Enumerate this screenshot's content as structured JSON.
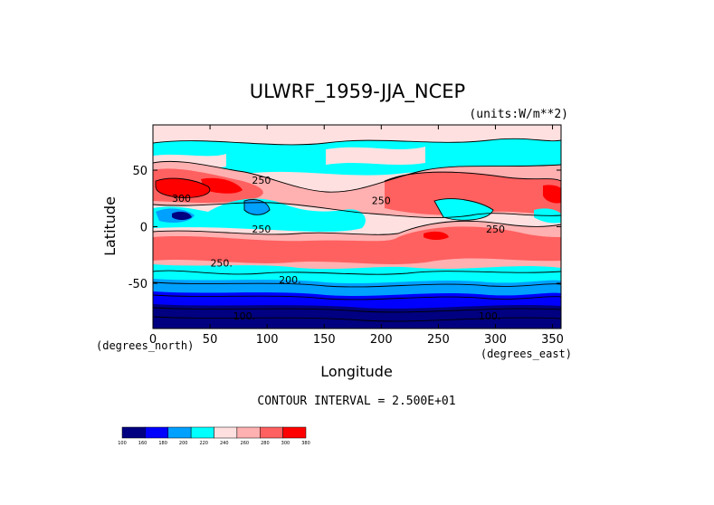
{
  "chart_data": {
    "type": "heatmap",
    "title": "ULWRF_1959-JJA_NCEP",
    "units_label": "(units:W/m**2)",
    "xlabel": "Longitude",
    "ylabel": "Latitude",
    "x_unit_label": "(degrees_east)",
    "y_unit_label": "(degrees_north)",
    "x_ticks": [
      0,
      50,
      100,
      150,
      200,
      250,
      300,
      350
    ],
    "y_ticks": [
      50,
      0,
      -50
    ],
    "xlim": [
      0,
      357.5
    ],
    "ylim": [
      -90,
      90
    ],
    "contour_interval_text": "CONTOUR INTERVAL = 2.500E+01",
    "contour_labels": [
      {
        "text": "300",
        "lon": 25,
        "lat": 22
      },
      {
        "text": "250",
        "lon": 95,
        "lat": 38
      },
      {
        "text": "250",
        "lon": 200,
        "lat": 20
      },
      {
        "text": "250",
        "lon": 95,
        "lat": -5
      },
      {
        "text": "250",
        "lon": 300,
        "lat": -5
      },
      {
        "text": "250.",
        "lon": 60,
        "lat": -35
      },
      {
        "text": "200.",
        "lon": 120,
        "lat": -50
      },
      {
        "text": "100.",
        "lon": 80,
        "lat": -82
      },
      {
        "text": "100.",
        "lon": 295,
        "lat": -82
      }
    ],
    "colorbar": {
      "levels": [
        "100",
        "160",
        "180",
        "200",
        "220",
        "240",
        "260",
        "280",
        "300",
        "380"
      ],
      "colors": [
        "#000080",
        "#0000ff",
        "#00a0ff",
        "#00ffff",
        "#ffe0e0",
        "#ffb0b0",
        "#ff6060",
        "#ff0000"
      ]
    },
    "zones": [
      {
        "lat": [
          75,
          90
        ],
        "band": "240-260"
      },
      {
        "lat": [
          60,
          75
        ],
        "band": "200-220"
      },
      {
        "lat": [
          40,
          60
        ],
        "band": "220-240"
      },
      {
        "lat": [
          15,
          40
        ],
        "band": "280-300"
      },
      {
        "lat": [
          -5,
          15
        ],
        "band": "200-240"
      },
      {
        "lat": [
          -30,
          -5
        ],
        "band": "260-280"
      },
      {
        "lat": [
          -40,
          -30
        ],
        "band": "240-260"
      },
      {
        "lat": [
          -55,
          -40
        ],
        "band": "200-220"
      },
      {
        "lat": [
          -65,
          -55
        ],
        "band": "180-200"
      },
      {
        "lat": [
          -75,
          -65
        ],
        "band": "160-180"
      },
      {
        "lat": [
          -90,
          -75
        ],
        "band": "<160"
      }
    ]
  }
}
